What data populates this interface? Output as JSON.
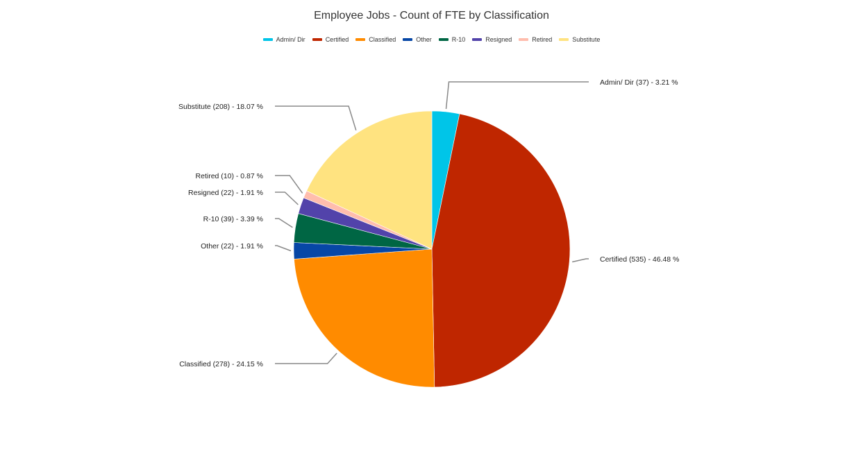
{
  "chart_data": {
    "type": "pie",
    "title": "Employee Jobs - Count of FTE by Classification",
    "legend_position": "top",
    "slices": [
      {
        "name": "Admin/ Dir",
        "count": 37,
        "percent": 3.21,
        "label": "Admin/ Dir (37) - 3.21 %",
        "color": "#00c5e8"
      },
      {
        "name": "Certified",
        "count": 535,
        "percent": 46.48,
        "label": "Certified (535) - 46.48 %",
        "color": "#bf2600"
      },
      {
        "name": "Classified",
        "count": 278,
        "percent": 24.15,
        "label": "Classified (278) - 24.15 %",
        "color": "#ff8b00"
      },
      {
        "name": "Other",
        "count": 22,
        "percent": 1.91,
        "label": "Other (22) - 1.91 %",
        "color": "#0747a6"
      },
      {
        "name": "R-10",
        "count": 39,
        "percent": 3.39,
        "label": "R-10 (39) - 3.39 %",
        "color": "#006644"
      },
      {
        "name": "Resigned",
        "count": 22,
        "percent": 1.91,
        "label": "Resigned (22) - 1.91 %",
        "color": "#5243aa"
      },
      {
        "name": "Retired",
        "count": 10,
        "percent": 0.87,
        "label": "Retired (10) - 0.87 %",
        "color": "#ffbdad"
      },
      {
        "name": "Substitute",
        "count": 208,
        "percent": 18.07,
        "label": "Substitute (208) - 18.07 %",
        "color": "#ffe380"
      }
    ]
  }
}
